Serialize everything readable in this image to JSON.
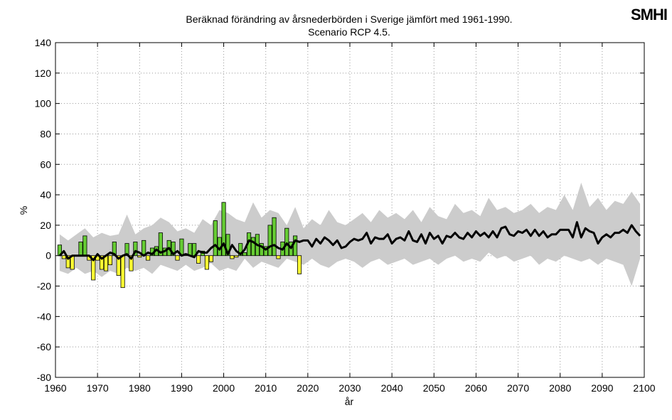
{
  "chart_data": {
    "type": "climate",
    "title": "Beräknad förändring av årsnederbörden i Sverige jämfört med 1961-1990.",
    "subtitle": "Scenario RCP 4.5.",
    "logo": "SMHI",
    "xlabel": "år",
    "ylabel": "%",
    "xlim": [
      1960,
      2100
    ],
    "xticks": [
      1960,
      1970,
      1980,
      1990,
      2000,
      2010,
      2020,
      2030,
      2040,
      2050,
      2060,
      2070,
      2080,
      2090,
      2100
    ],
    "ylim": [
      -80,
      140
    ],
    "yticks": [
      -80,
      -60,
      -40,
      -20,
      0,
      20,
      40,
      60,
      80,
      100,
      120,
      140
    ],
    "grid": true,
    "band": {
      "color": "#cccccc",
      "x": [
        1961,
        1963,
        1965,
        1967,
        1969,
        1971,
        1973,
        1975,
        1977,
        1979,
        1981,
        1983,
        1985,
        1987,
        1989,
        1991,
        1993,
        1995,
        1997,
        1999,
        2001,
        2003,
        2005,
        2007,
        2009,
        2011,
        2013,
        2015,
        2017,
        2019,
        2021,
        2023,
        2025,
        2027,
        2029,
        2031,
        2033,
        2035,
        2037,
        2039,
        2041,
        2043,
        2045,
        2047,
        2049,
        2051,
        2053,
        2055,
        2057,
        2059,
        2061,
        2063,
        2065,
        2067,
        2069,
        2071,
        2073,
        2075,
        2077,
        2079,
        2081,
        2083,
        2085,
        2087,
        2089,
        2091,
        2093,
        2095,
        2097,
        2099
      ],
      "upper": [
        14,
        10,
        14,
        18,
        12,
        15,
        13,
        14,
        27,
        14,
        18,
        20,
        25,
        22,
        16,
        18,
        15,
        24,
        20,
        30,
        28,
        24,
        22,
        35,
        25,
        30,
        28,
        20,
        32,
        18,
        24,
        20,
        30,
        22,
        20,
        24,
        28,
        22,
        30,
        25,
        28,
        24,
        30,
        22,
        32,
        26,
        24,
        34,
        28,
        30,
        26,
        38,
        30,
        32,
        28,
        30,
        34,
        28,
        32,
        30,
        40,
        30,
        48,
        32,
        38,
        30,
        36,
        34,
        42,
        34
      ],
      "lower": [
        -10,
        -12,
        -8,
        -12,
        -10,
        -14,
        -10,
        -12,
        -8,
        -10,
        -8,
        -12,
        -6,
        -8,
        -10,
        -6,
        -10,
        -8,
        -5,
        -10,
        -8,
        -10,
        -2,
        -8,
        -4,
        -6,
        -8,
        -2,
        -4,
        -6,
        -2,
        -6,
        -8,
        -4,
        -2,
        -4,
        -8,
        -4,
        -2,
        -6,
        -4,
        -2,
        -6,
        -4,
        -2,
        -6,
        -2,
        0,
        -4,
        -2,
        -4,
        2,
        -2,
        0,
        -4,
        -2,
        0,
        -6,
        -2,
        -4,
        0,
        -2,
        -4,
        -2,
        -6,
        -2,
        -4,
        -6,
        -20,
        -2
      ]
    },
    "bars": {
      "positive_color": "#66cc33",
      "negative_color": "#ffff33",
      "x": [
        1961,
        1962,
        1963,
        1964,
        1965,
        1966,
        1967,
        1968,
        1969,
        1970,
        1971,
        1972,
        1973,
        1974,
        1975,
        1976,
        1977,
        1978,
        1979,
        1980,
        1981,
        1982,
        1983,
        1984,
        1985,
        1986,
        1987,
        1988,
        1989,
        1990,
        1991,
        1992,
        1993,
        1994,
        1995,
        1996,
        1997,
        1998,
        1999,
        2000,
        2001,
        2002,
        2003,
        2004,
        2005,
        2006,
        2007,
        2008,
        2009,
        2010,
        2011,
        2012,
        2013,
        2014,
        2015,
        2016,
        2017,
        2018
      ],
      "values": [
        7,
        -2,
        -8,
        -9,
        0,
        9,
        13,
        -3,
        -16,
        -3,
        -9,
        -10,
        -6,
        9,
        -13,
        -21,
        8,
        -10,
        9,
        -1,
        10,
        -3,
        5,
        6,
        15,
        5,
        10,
        9,
        -3,
        11,
        1,
        8,
        8,
        -5,
        3,
        -9,
        -4,
        23,
        12,
        35,
        14,
        -2,
        -1,
        8,
        2,
        15,
        12,
        14,
        8,
        6,
        20,
        25,
        -2,
        9,
        18,
        9,
        13,
        -12
      ]
    },
    "line": {
      "color": "#000000",
      "x": [
        1961,
        1962,
        1963,
        1964,
        1965,
        1966,
        1967,
        1968,
        1969,
        1970,
        1971,
        1972,
        1973,
        1974,
        1975,
        1976,
        1977,
        1978,
        1979,
        1980,
        1981,
        1982,
        1983,
        1984,
        1985,
        1986,
        1987,
        1988,
        1989,
        1990,
        1991,
        1992,
        1993,
        1994,
        1995,
        1996,
        1997,
        1998,
        1999,
        2000,
        2001,
        2002,
        2003,
        2004,
        2005,
        2006,
        2007,
        2008,
        2009,
        2010,
        2011,
        2012,
        2013,
        2014,
        2015,
        2016,
        2017,
        2018,
        2019,
        2020,
        2021,
        2022,
        2023,
        2024,
        2025,
        2026,
        2027,
        2028,
        2029,
        2030,
        2031,
        2032,
        2033,
        2034,
        2035,
        2036,
        2037,
        2038,
        2039,
        2040,
        2041,
        2042,
        2043,
        2044,
        2045,
        2046,
        2047,
        2048,
        2049,
        2050,
        2051,
        2052,
        2053,
        2054,
        2055,
        2056,
        2057,
        2058,
        2059,
        2060,
        2061,
        2062,
        2063,
        2064,
        2065,
        2066,
        2067,
        2068,
        2069,
        2070,
        2071,
        2072,
        2073,
        2074,
        2075,
        2076,
        2077,
        2078,
        2079,
        2080,
        2081,
        2082,
        2083,
        2084,
        2085,
        2086,
        2087,
        2088,
        2089,
        2090,
        2091,
        2092,
        2093,
        2094,
        2095,
        2096,
        2097,
        2098,
        2099
      ],
      "values": [
        0,
        3,
        -2,
        0,
        0,
        0,
        0,
        0,
        -3,
        1,
        -2,
        0,
        2,
        1,
        -2,
        0,
        1,
        -2,
        3,
        2,
        0,
        2,
        1,
        4,
        2,
        3,
        5,
        1,
        3,
        0,
        1,
        0,
        -1,
        3,
        2,
        2,
        5,
        7,
        4,
        8,
        1,
        7,
        3,
        1,
        4,
        10,
        9,
        7,
        6,
        4,
        6,
        7,
        5,
        4,
        8,
        5,
        10,
        9,
        10,
        10,
        6,
        11,
        8,
        12,
        10,
        7,
        10,
        5,
        6,
        9,
        11,
        10,
        11,
        15,
        8,
        12,
        11,
        11,
        14,
        8,
        11,
        12,
        10,
        16,
        10,
        9,
        14,
        8,
        15,
        11,
        13,
        8,
        13,
        12,
        15,
        12,
        11,
        15,
        12,
        16,
        13,
        15,
        12,
        16,
        12,
        18,
        19,
        14,
        13,
        16,
        15,
        17,
        13,
        17,
        13,
        16,
        12,
        14,
        14,
        17,
        17,
        17,
        12,
        22,
        12,
        18,
        16,
        15,
        8,
        12,
        14,
        12,
        15,
        15,
        17,
        15,
        20,
        16,
        13
      ]
    }
  }
}
